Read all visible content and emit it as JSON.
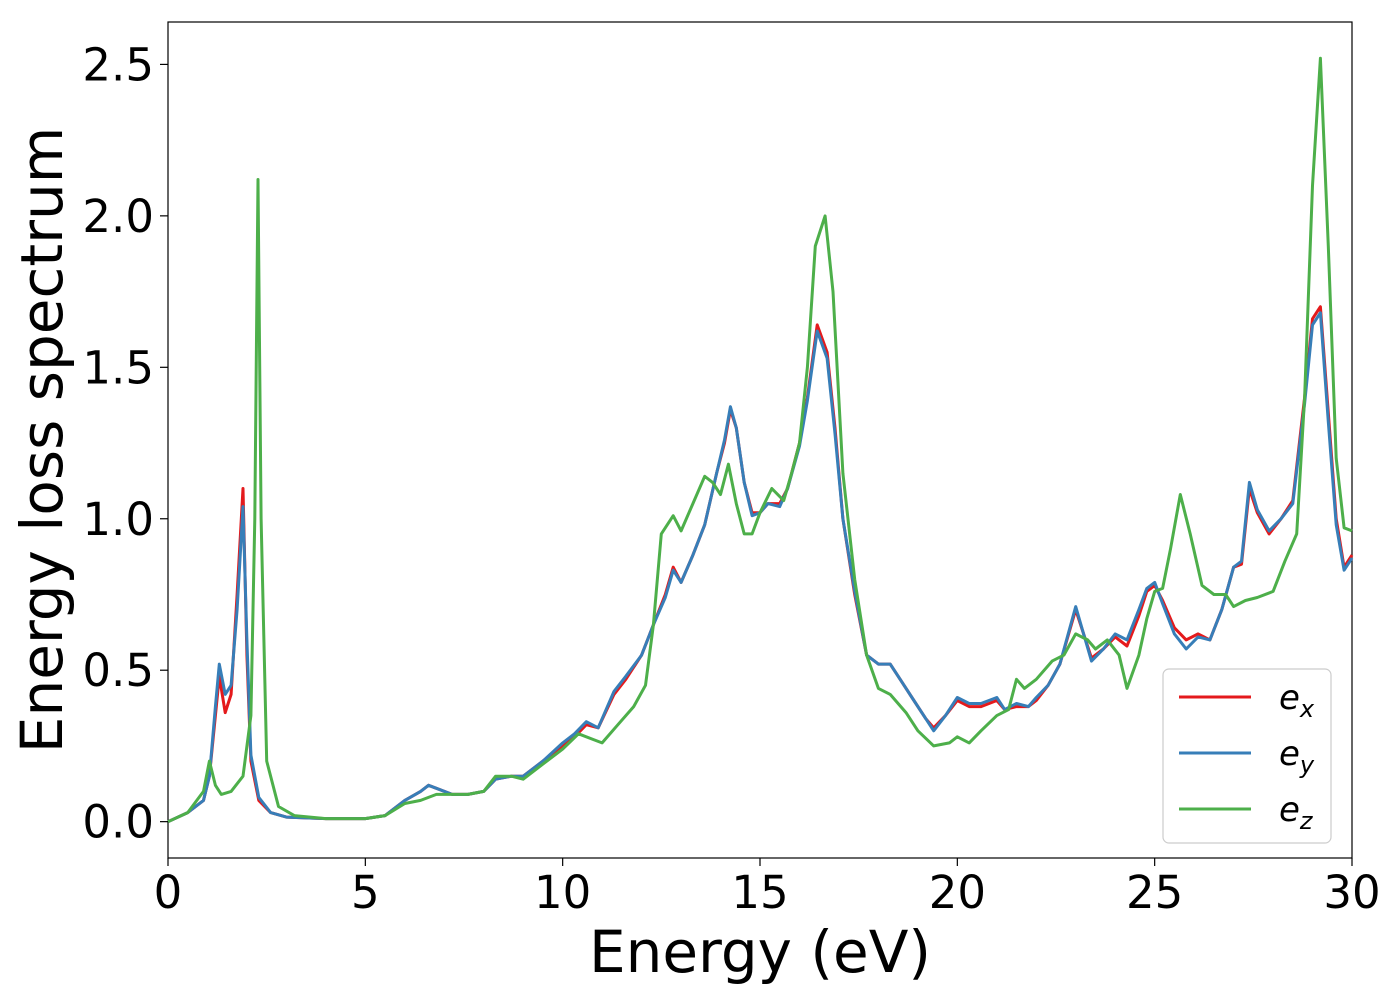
{
  "chart_data": {
    "type": "line",
    "xlabel": "Energy (eV)",
    "ylabel": "Energy loss spectrum",
    "xlim": [
      0,
      30
    ],
    "ylim": [
      -0.12,
      2.64
    ],
    "x_ticks": [
      "0",
      "5",
      "10",
      "15",
      "20",
      "25",
      "30"
    ],
    "y_ticks": [
      "0.0",
      "0.5",
      "1.0",
      "1.5",
      "2.0",
      "2.5"
    ],
    "grid": false,
    "legend_position": "bottom-right",
    "series": [
      {
        "name_base": "e",
        "name_sub": "x",
        "color": "#e41a1c",
        "points": [
          [
            0,
            0
          ],
          [
            0.5,
            0.03
          ],
          [
            0.9,
            0.07
          ],
          [
            1.05,
            0.15
          ],
          [
            1.2,
            0.35
          ],
          [
            1.3,
            0.48
          ],
          [
            1.45,
            0.36
          ],
          [
            1.6,
            0.42
          ],
          [
            1.75,
            0.75
          ],
          [
            1.9,
            1.1
          ],
          [
            2.0,
            0.55
          ],
          [
            2.1,
            0.2
          ],
          [
            2.3,
            0.07
          ],
          [
            2.6,
            0.03
          ],
          [
            3,
            0.015
          ],
          [
            4,
            0.01
          ],
          [
            5,
            0.01
          ],
          [
            5.5,
            0.02
          ],
          [
            6,
            0.07
          ],
          [
            6.4,
            0.1
          ],
          [
            6.6,
            0.12
          ],
          [
            6.8,
            0.11
          ],
          [
            7.2,
            0.09
          ],
          [
            7.6,
            0.09
          ],
          [
            8,
            0.1
          ],
          [
            8.3,
            0.14
          ],
          [
            8.7,
            0.15
          ],
          [
            9,
            0.15
          ],
          [
            9.5,
            0.2
          ],
          [
            10,
            0.25
          ],
          [
            10.3,
            0.28
          ],
          [
            10.6,
            0.32
          ],
          [
            10.9,
            0.31
          ],
          [
            11.3,
            0.42
          ],
          [
            11.6,
            0.47
          ],
          [
            12,
            0.55
          ],
          [
            12.3,
            0.65
          ],
          [
            12.6,
            0.75
          ],
          [
            12.8,
            0.84
          ],
          [
            13,
            0.79
          ],
          [
            13.3,
            0.88
          ],
          [
            13.6,
            0.98
          ],
          [
            13.9,
            1.15
          ],
          [
            14.1,
            1.25
          ],
          [
            14.25,
            1.36
          ],
          [
            14.4,
            1.3
          ],
          [
            14.6,
            1.12
          ],
          [
            14.8,
            1.02
          ],
          [
            15,
            1.02
          ],
          [
            15.2,
            1.05
          ],
          [
            15.5,
            1.05
          ],
          [
            15.7,
            1.1
          ],
          [
            16,
            1.25
          ],
          [
            16.2,
            1.4
          ],
          [
            16.45,
            1.64
          ],
          [
            16.7,
            1.55
          ],
          [
            16.9,
            1.3
          ],
          [
            17.1,
            1.0
          ],
          [
            17.4,
            0.75
          ],
          [
            17.7,
            0.55
          ],
          [
            18,
            0.52
          ],
          [
            18.3,
            0.52
          ],
          [
            18.6,
            0.46
          ],
          [
            18.9,
            0.4
          ],
          [
            19.2,
            0.34
          ],
          [
            19.4,
            0.31
          ],
          [
            19.7,
            0.35
          ],
          [
            20,
            0.4
          ],
          [
            20.3,
            0.38
          ],
          [
            20.6,
            0.38
          ],
          [
            21,
            0.4
          ],
          [
            21.2,
            0.37
          ],
          [
            21.5,
            0.38
          ],
          [
            21.8,
            0.38
          ],
          [
            22,
            0.4
          ],
          [
            22.3,
            0.45
          ],
          [
            22.6,
            0.52
          ],
          [
            23,
            0.7
          ],
          [
            23.2,
            0.62
          ],
          [
            23.4,
            0.54
          ],
          [
            23.7,
            0.57
          ],
          [
            24,
            0.61
          ],
          [
            24.3,
            0.58
          ],
          [
            24.6,
            0.68
          ],
          [
            24.8,
            0.76
          ],
          [
            25,
            0.78
          ],
          [
            25.2,
            0.73
          ],
          [
            25.5,
            0.64
          ],
          [
            25.8,
            0.6
          ],
          [
            26.1,
            0.62
          ],
          [
            26.4,
            0.6
          ],
          [
            26.7,
            0.7
          ],
          [
            27,
            0.84
          ],
          [
            27.2,
            0.85
          ],
          [
            27.4,
            1.1
          ],
          [
            27.6,
            1.02
          ],
          [
            27.9,
            0.95
          ],
          [
            28.2,
            1.0
          ],
          [
            28.5,
            1.06
          ],
          [
            28.8,
            1.4
          ],
          [
            29,
            1.66
          ],
          [
            29.2,
            1.7
          ],
          [
            29.4,
            1.35
          ],
          [
            29.6,
            1.0
          ],
          [
            29.8,
            0.84
          ],
          [
            30,
            0.88
          ]
        ]
      },
      {
        "name_base": "e",
        "name_sub": "y",
        "color": "#377eb8",
        "points": [
          [
            0,
            0
          ],
          [
            0.5,
            0.03
          ],
          [
            0.9,
            0.07
          ],
          [
            1.05,
            0.15
          ],
          [
            1.2,
            0.38
          ],
          [
            1.3,
            0.52
          ],
          [
            1.45,
            0.42
          ],
          [
            1.6,
            0.45
          ],
          [
            1.75,
            0.7
          ],
          [
            1.9,
            1.04
          ],
          [
            2.0,
            0.6
          ],
          [
            2.1,
            0.22
          ],
          [
            2.3,
            0.08
          ],
          [
            2.6,
            0.03
          ],
          [
            3,
            0.015
          ],
          [
            4,
            0.01
          ],
          [
            5,
            0.01
          ],
          [
            5.5,
            0.02
          ],
          [
            6,
            0.07
          ],
          [
            6.4,
            0.1
          ],
          [
            6.6,
            0.12
          ],
          [
            6.8,
            0.11
          ],
          [
            7.2,
            0.09
          ],
          [
            7.6,
            0.09
          ],
          [
            8,
            0.1
          ],
          [
            8.3,
            0.14
          ],
          [
            8.7,
            0.15
          ],
          [
            9,
            0.15
          ],
          [
            9.5,
            0.2
          ],
          [
            10,
            0.26
          ],
          [
            10.3,
            0.29
          ],
          [
            10.6,
            0.33
          ],
          [
            10.9,
            0.31
          ],
          [
            11.3,
            0.43
          ],
          [
            11.6,
            0.48
          ],
          [
            12,
            0.55
          ],
          [
            12.3,
            0.65
          ],
          [
            12.6,
            0.74
          ],
          [
            12.8,
            0.83
          ],
          [
            13,
            0.79
          ],
          [
            13.3,
            0.88
          ],
          [
            13.6,
            0.98
          ],
          [
            13.9,
            1.15
          ],
          [
            14.1,
            1.26
          ],
          [
            14.25,
            1.37
          ],
          [
            14.4,
            1.3
          ],
          [
            14.6,
            1.12
          ],
          [
            14.8,
            1.01
          ],
          [
            15,
            1.02
          ],
          [
            15.2,
            1.05
          ],
          [
            15.5,
            1.04
          ],
          [
            15.7,
            1.1
          ],
          [
            16,
            1.24
          ],
          [
            16.2,
            1.39
          ],
          [
            16.45,
            1.62
          ],
          [
            16.7,
            1.53
          ],
          [
            16.9,
            1.28
          ],
          [
            17.1,
            1.0
          ],
          [
            17.4,
            0.76
          ],
          [
            17.7,
            0.55
          ],
          [
            18,
            0.52
          ],
          [
            18.3,
            0.52
          ],
          [
            18.6,
            0.46
          ],
          [
            18.9,
            0.4
          ],
          [
            19.2,
            0.34
          ],
          [
            19.4,
            0.3
          ],
          [
            19.7,
            0.35
          ],
          [
            20,
            0.41
          ],
          [
            20.3,
            0.39
          ],
          [
            20.6,
            0.39
          ],
          [
            21,
            0.41
          ],
          [
            21.2,
            0.37
          ],
          [
            21.5,
            0.39
          ],
          [
            21.8,
            0.38
          ],
          [
            22,
            0.41
          ],
          [
            22.3,
            0.45
          ],
          [
            22.6,
            0.52
          ],
          [
            23,
            0.71
          ],
          [
            23.2,
            0.62
          ],
          [
            23.4,
            0.53
          ],
          [
            23.7,
            0.57
          ],
          [
            24,
            0.62
          ],
          [
            24.3,
            0.6
          ],
          [
            24.6,
            0.7
          ],
          [
            24.8,
            0.77
          ],
          [
            25,
            0.79
          ],
          [
            25.2,
            0.72
          ],
          [
            25.5,
            0.62
          ],
          [
            25.8,
            0.57
          ],
          [
            26.1,
            0.61
          ],
          [
            26.4,
            0.6
          ],
          [
            26.7,
            0.7
          ],
          [
            27,
            0.84
          ],
          [
            27.2,
            0.86
          ],
          [
            27.4,
            1.12
          ],
          [
            27.6,
            1.03
          ],
          [
            27.9,
            0.96
          ],
          [
            28.2,
            1.0
          ],
          [
            28.5,
            1.05
          ],
          [
            28.8,
            1.38
          ],
          [
            29,
            1.64
          ],
          [
            29.2,
            1.68
          ],
          [
            29.4,
            1.32
          ],
          [
            29.6,
            0.98
          ],
          [
            29.8,
            0.83
          ],
          [
            30,
            0.87
          ]
        ]
      },
      {
        "name_base": "e",
        "name_sub": "z",
        "color": "#4daf4a",
        "points": [
          [
            0,
            0
          ],
          [
            0.5,
            0.03
          ],
          [
            0.9,
            0.1
          ],
          [
            1.05,
            0.2
          ],
          [
            1.2,
            0.12
          ],
          [
            1.35,
            0.09
          ],
          [
            1.6,
            0.1
          ],
          [
            1.9,
            0.15
          ],
          [
            2.1,
            0.35
          ],
          [
            2.2,
            1.0
          ],
          [
            2.28,
            2.12
          ],
          [
            2.36,
            1.0
          ],
          [
            2.5,
            0.2
          ],
          [
            2.8,
            0.05
          ],
          [
            3.2,
            0.02
          ],
          [
            4,
            0.01
          ],
          [
            5,
            0.01
          ],
          [
            5.5,
            0.02
          ],
          [
            6,
            0.06
          ],
          [
            6.4,
            0.07
          ],
          [
            6.8,
            0.09
          ],
          [
            7.2,
            0.09
          ],
          [
            7.6,
            0.09
          ],
          [
            8,
            0.1
          ],
          [
            8.3,
            0.15
          ],
          [
            8.7,
            0.15
          ],
          [
            9,
            0.14
          ],
          [
            9.5,
            0.19
          ],
          [
            10,
            0.24
          ],
          [
            10.4,
            0.29
          ],
          [
            10.8,
            0.27
          ],
          [
            11,
            0.26
          ],
          [
            11.4,
            0.32
          ],
          [
            11.8,
            0.38
          ],
          [
            12.1,
            0.45
          ],
          [
            12.3,
            0.65
          ],
          [
            12.5,
            0.95
          ],
          [
            12.8,
            1.01
          ],
          [
            13,
            0.96
          ],
          [
            13.3,
            1.05
          ],
          [
            13.6,
            1.14
          ],
          [
            13.8,
            1.12
          ],
          [
            14,
            1.08
          ],
          [
            14.2,
            1.18
          ],
          [
            14.4,
            1.05
          ],
          [
            14.6,
            0.95
          ],
          [
            14.8,
            0.95
          ],
          [
            15,
            1.02
          ],
          [
            15.3,
            1.1
          ],
          [
            15.6,
            1.06
          ],
          [
            15.8,
            1.15
          ],
          [
            16,
            1.25
          ],
          [
            16.2,
            1.5
          ],
          [
            16.4,
            1.9
          ],
          [
            16.65,
            2.0
          ],
          [
            16.85,
            1.75
          ],
          [
            17.1,
            1.15
          ],
          [
            17.4,
            0.8
          ],
          [
            17.7,
            0.55
          ],
          [
            18,
            0.44
          ],
          [
            18.3,
            0.42
          ],
          [
            18.7,
            0.36
          ],
          [
            19,
            0.3
          ],
          [
            19.4,
            0.25
          ],
          [
            19.8,
            0.26
          ],
          [
            20,
            0.28
          ],
          [
            20.3,
            0.26
          ],
          [
            20.6,
            0.3
          ],
          [
            21,
            0.35
          ],
          [
            21.3,
            0.37
          ],
          [
            21.5,
            0.47
          ],
          [
            21.7,
            0.44
          ],
          [
            22,
            0.47
          ],
          [
            22.4,
            0.53
          ],
          [
            22.7,
            0.55
          ],
          [
            23,
            0.62
          ],
          [
            23.3,
            0.6
          ],
          [
            23.5,
            0.57
          ],
          [
            23.8,
            0.6
          ],
          [
            24.1,
            0.55
          ],
          [
            24.3,
            0.44
          ],
          [
            24.6,
            0.55
          ],
          [
            24.8,
            0.67
          ],
          [
            25,
            0.76
          ],
          [
            25.2,
            0.77
          ],
          [
            25.4,
            0.9
          ],
          [
            25.65,
            1.08
          ],
          [
            25.9,
            0.95
          ],
          [
            26.2,
            0.78
          ],
          [
            26.5,
            0.75
          ],
          [
            26.8,
            0.75
          ],
          [
            27,
            0.71
          ],
          [
            27.3,
            0.73
          ],
          [
            27.6,
            0.74
          ],
          [
            28,
            0.76
          ],
          [
            28.3,
            0.86
          ],
          [
            28.6,
            0.95
          ],
          [
            28.8,
            1.4
          ],
          [
            29,
            2.1
          ],
          [
            29.2,
            2.52
          ],
          [
            29.4,
            1.9
          ],
          [
            29.6,
            1.2
          ],
          [
            29.8,
            0.97
          ],
          [
            30,
            0.96
          ]
        ]
      }
    ]
  }
}
